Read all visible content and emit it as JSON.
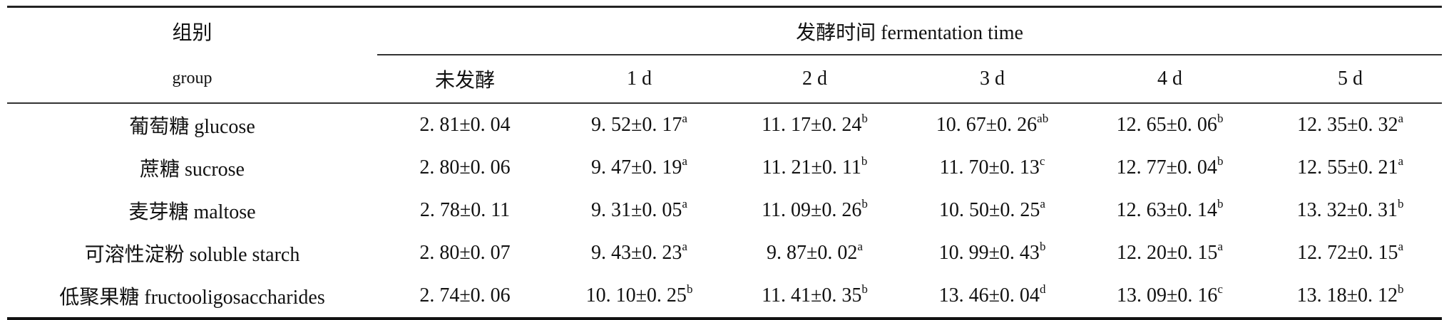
{
  "header": {
    "group_cn": "组别",
    "group_en": "group",
    "fermentation_time": "发酵时间 fermentation time",
    "columns": [
      "未发酵",
      "1 d",
      "2 d",
      "3 d",
      "4 d",
      "5 d"
    ]
  },
  "rows": [
    {
      "group": "葡萄糖 glucose",
      "cells": [
        {
          "v": "2. 81±0. 04",
          "s": ""
        },
        {
          "v": "9. 52±0. 17",
          "s": "a"
        },
        {
          "v": "11. 17±0. 24",
          "s": "b"
        },
        {
          "v": "10. 67±0. 26",
          "s": "ab"
        },
        {
          "v": "12. 65±0. 06",
          "s": "b"
        },
        {
          "v": "12. 35±0. 32",
          "s": "a"
        }
      ]
    },
    {
      "group": "蔗糖 sucrose",
      "cells": [
        {
          "v": "2. 80±0. 06",
          "s": ""
        },
        {
          "v": "9. 47±0. 19",
          "s": "a"
        },
        {
          "v": "11. 21±0. 11",
          "s": "b"
        },
        {
          "v": "11. 70±0. 13",
          "s": "c"
        },
        {
          "v": "12. 77±0. 04",
          "s": "b"
        },
        {
          "v": "12. 55±0. 21",
          "s": "a"
        }
      ]
    },
    {
      "group": "麦芽糖 maltose",
      "cells": [
        {
          "v": "2. 78±0. 11",
          "s": ""
        },
        {
          "v": "9. 31±0. 05",
          "s": "a"
        },
        {
          "v": "11. 09±0. 26",
          "s": "b"
        },
        {
          "v": "10. 50±0. 25",
          "s": "a"
        },
        {
          "v": "12. 63±0. 14",
          "s": "b"
        },
        {
          "v": "13. 32±0. 31",
          "s": "b"
        }
      ]
    },
    {
      "group": "可溶性淀粉 soluble starch",
      "cells": [
        {
          "v": "2. 80±0. 07",
          "s": ""
        },
        {
          "v": "9. 43±0. 23",
          "s": "a"
        },
        {
          "v": "9. 87±0. 02",
          "s": "a"
        },
        {
          "v": "10. 99±0. 43",
          "s": "b"
        },
        {
          "v": "12. 20±0. 15",
          "s": "a"
        },
        {
          "v": "12. 72±0. 15",
          "s": "a"
        }
      ]
    },
    {
      "group": "低聚果糖 fructooligosaccharides",
      "cells": [
        {
          "v": "2. 74±0. 06",
          "s": ""
        },
        {
          "v": "10. 10±0. 25",
          "s": "b"
        },
        {
          "v": "11. 41±0. 35",
          "s": "b"
        },
        {
          "v": "13. 46±0. 04",
          "s": "d"
        },
        {
          "v": "13. 09±0. 16",
          "s": "c"
        },
        {
          "v": "13. 18±0. 12",
          "s": "b"
        }
      ]
    }
  ]
}
